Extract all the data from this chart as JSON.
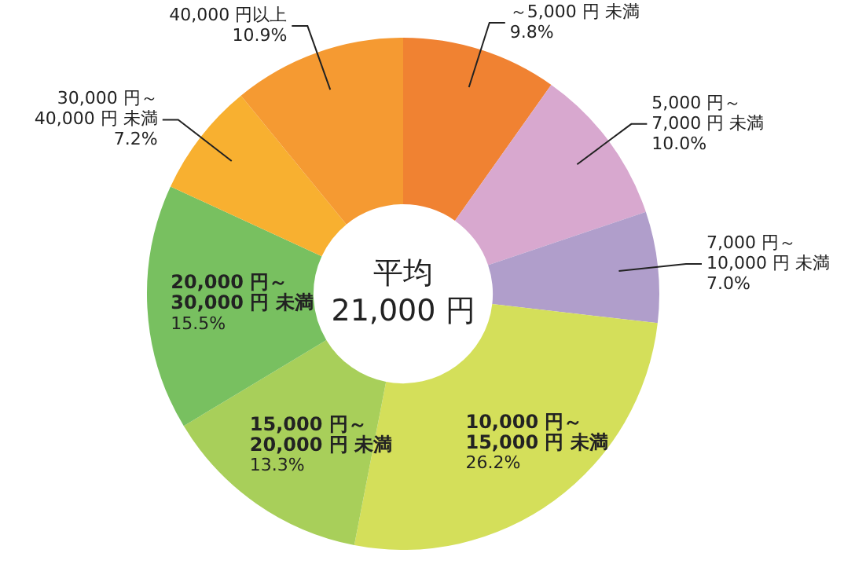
{
  "chart_data": {
    "type": "donut",
    "categories": [
      "～5,000 円 未満",
      "5,000 円～\n7,000 円 未満",
      "7,000 円～\n10,000 円 未満",
      "10,000 円～\n15,000 円 未満",
      "15,000 円～\n20,000 円 未満",
      "20,000 円～\n30,000 円 未満",
      "30,000 円～\n40,000 円 未満",
      "40,000 円以上"
    ],
    "values": [
      9.8,
      10.0,
      7.0,
      26.2,
      13.3,
      15.5,
      7.2,
      10.9
    ],
    "value_labels": [
      "9.8%",
      "10.0%",
      "7.0%",
      "26.2%",
      "13.3%",
      "15.5%",
      "7.2%",
      "10.9%"
    ],
    "colors": [
      "#f08232",
      "#d8a8cf",
      "#b09ecb",
      "#d4df5a",
      "#a8cf5a",
      "#78c060",
      "#f8b030",
      "#f59a32"
    ],
    "annotations": [
      "平均\n21,000 円"
    ]
  }
}
